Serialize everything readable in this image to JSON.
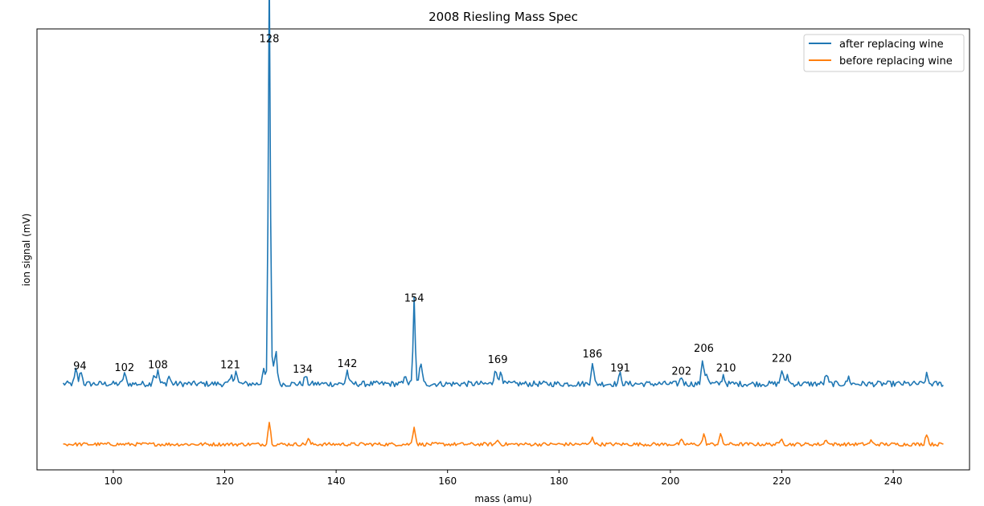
{
  "chart_data": {
    "type": "line",
    "title": "2008 Riesling Mass Spec",
    "xlabel": "mass (amu)",
    "ylabel": "ion signal (mV)",
    "xlim": [
      86.3,
      253.7
    ],
    "ylim": [
      0,
      100
    ],
    "xticks": [
      100,
      120,
      140,
      160,
      180,
      200,
      220,
      240
    ],
    "grid": false,
    "legend_position": "top-right",
    "series": [
      {
        "name": "after replacing wine",
        "color": "#1f77b4",
        "baseline": 19.5,
        "x_range": [
          91,
          249
        ],
        "peaks": [
          [
            93.3,
            3.2
          ],
          [
            94.2,
            3.0
          ],
          [
            102.0,
            2.5
          ],
          [
            107.3,
            2.2
          ],
          [
            108.0,
            2.8
          ],
          [
            110.0,
            1.8
          ],
          [
            121.2,
            1.6
          ],
          [
            122.0,
            3.2
          ],
          [
            127.0,
            4.0
          ],
          [
            128.0,
            94.5
          ],
          [
            128.6,
            4.2
          ],
          [
            129.2,
            7.5
          ],
          [
            134.5,
            1.8
          ],
          [
            142.0,
            3.0
          ],
          [
            152.5,
            2.0
          ],
          [
            154.0,
            20.0
          ],
          [
            155.2,
            5.0
          ],
          [
            168.6,
            3.8
          ],
          [
            169.6,
            3.2
          ],
          [
            186.0,
            5.0
          ],
          [
            191.0,
            2.3
          ],
          [
            202.0,
            1.6
          ],
          [
            205.8,
            5.5
          ],
          [
            206.5,
            2.5
          ],
          [
            209.5,
            2.0
          ],
          [
            220.0,
            3.2
          ],
          [
            221.0,
            2.0
          ],
          [
            228.0,
            2.2
          ],
          [
            232.0,
            1.5
          ],
          [
            246.0,
            2.0
          ]
        ]
      },
      {
        "name": "before replacing wine",
        "color": "#ff7f0e",
        "baseline": 5.8,
        "x_range": [
          91,
          249
        ],
        "peaks": [
          [
            128.0,
            5.2
          ],
          [
            135.0,
            1.2
          ],
          [
            154.0,
            4.2
          ],
          [
            169.0,
            1.0
          ],
          [
            186.0,
            1.8
          ],
          [
            202.0,
            0.8
          ],
          [
            206.0,
            2.2
          ],
          [
            209.0,
            2.3
          ],
          [
            220.0,
            1.5
          ],
          [
            228.0,
            1.2
          ],
          [
            236.0,
            0.8
          ],
          [
            246.0,
            2.5
          ]
        ]
      }
    ],
    "annotations": [
      {
        "text": "94",
        "x": 94,
        "y": 22.8
      },
      {
        "text": "102",
        "x": 102,
        "y": 22.4
      },
      {
        "text": "108",
        "x": 108,
        "y": 23.0
      },
      {
        "text": "121",
        "x": 121,
        "y": 23.0
      },
      {
        "text": "128",
        "x": 128,
        "y": 97.0
      },
      {
        "text": "134",
        "x": 134,
        "y": 22.0
      },
      {
        "text": "142",
        "x": 142,
        "y": 23.3
      },
      {
        "text": "154",
        "x": 154,
        "y": 38.2
      },
      {
        "text": "169",
        "x": 169,
        "y": 24.2
      },
      {
        "text": "186",
        "x": 186,
        "y": 25.5
      },
      {
        "text": "191",
        "x": 191,
        "y": 22.3
      },
      {
        "text": "202",
        "x": 202,
        "y": 21.6
      },
      {
        "text": "206",
        "x": 206,
        "y": 26.8
      },
      {
        "text": "210",
        "x": 210,
        "y": 22.3
      },
      {
        "text": "220",
        "x": 220,
        "y": 24.5
      }
    ]
  }
}
